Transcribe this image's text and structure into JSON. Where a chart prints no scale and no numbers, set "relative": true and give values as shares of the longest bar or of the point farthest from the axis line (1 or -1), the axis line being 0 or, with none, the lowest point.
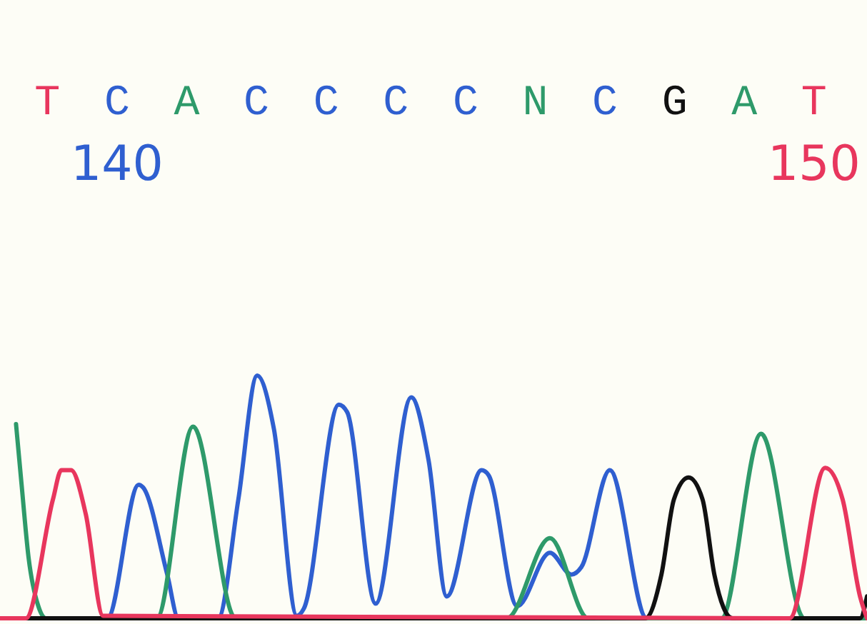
{
  "chart_data": {
    "type": "line",
    "relative": true,
    "xlim": [
      138.32,
      150.76
    ],
    "xticks": [
      140,
      150
    ],
    "marker": "none",
    "line_style": "solid",
    "annotations": [
      "T",
      "C",
      "A",
      "C",
      "C",
      "C",
      "C",
      "N",
      "C",
      "G",
      "A",
      "T"
    ],
    "series": [
      {
        "color": "#2f5fd0",
        "x": [
          138.32,
          139.86,
          140.31,
          140.37,
          140.72,
          140.88,
          141.45,
          141.74,
          142.01,
          142.25,
          142.58,
          142.68,
          143.18,
          143.3,
          143.71,
          144.22,
          144.47,
          144.73,
          145.23,
          145.33,
          145.74,
          146.21,
          146.52,
          146.66,
          147.07,
          147.6,
          150.76
        ],
        "values": [
          0,
          0,
          0.55,
          0.54,
          0.18,
          0,
          0,
          0.49,
          1,
          0.78,
          0.01,
          0.04,
          0.88,
          0.85,
          0.06,
          0.91,
          0.65,
          0.09,
          0.61,
          0.59,
          0.05,
          0.27,
          0.18,
          0.21,
          0.61,
          0,
          0
        ]
      },
      {
        "color": "#2e9a6a",
        "x": [
          138.55,
          138.63,
          138.73,
          138.87,
          138.98,
          140.57,
          141.09,
          141.7,
          145.59,
          146.21,
          146.76,
          148.67,
          149.24,
          149.86,
          150.76
        ],
        "values": [
          0.8,
          0.55,
          0.25,
          0.05,
          0,
          0,
          0.79,
          0,
          0,
          0.33,
          0,
          0,
          0.76,
          0,
          0
        ]
      },
      {
        "color": "#111111",
        "x": [
          138.32,
          147.58,
          147.81,
          147.99,
          148.2,
          148.4,
          148.57,
          148.83,
          150.66,
          150.76
        ],
        "values": [
          0,
          0,
          0.18,
          0.49,
          0.58,
          0.49,
          0.18,
          0,
          0,
          0.09
        ]
      },
      {
        "color": "#e8365d",
        "x": [
          138.32,
          138.69,
          139.08,
          139.2,
          139.34,
          139.55,
          139.8,
          149.65,
          150.16,
          150.41,
          150.66,
          150.76
        ],
        "values": [
          0,
          0,
          0.49,
          0.61,
          0.61,
          0.43,
          0.01,
          0,
          0.62,
          0.49,
          0.09,
          0
        ]
      }
    ]
  }
}
